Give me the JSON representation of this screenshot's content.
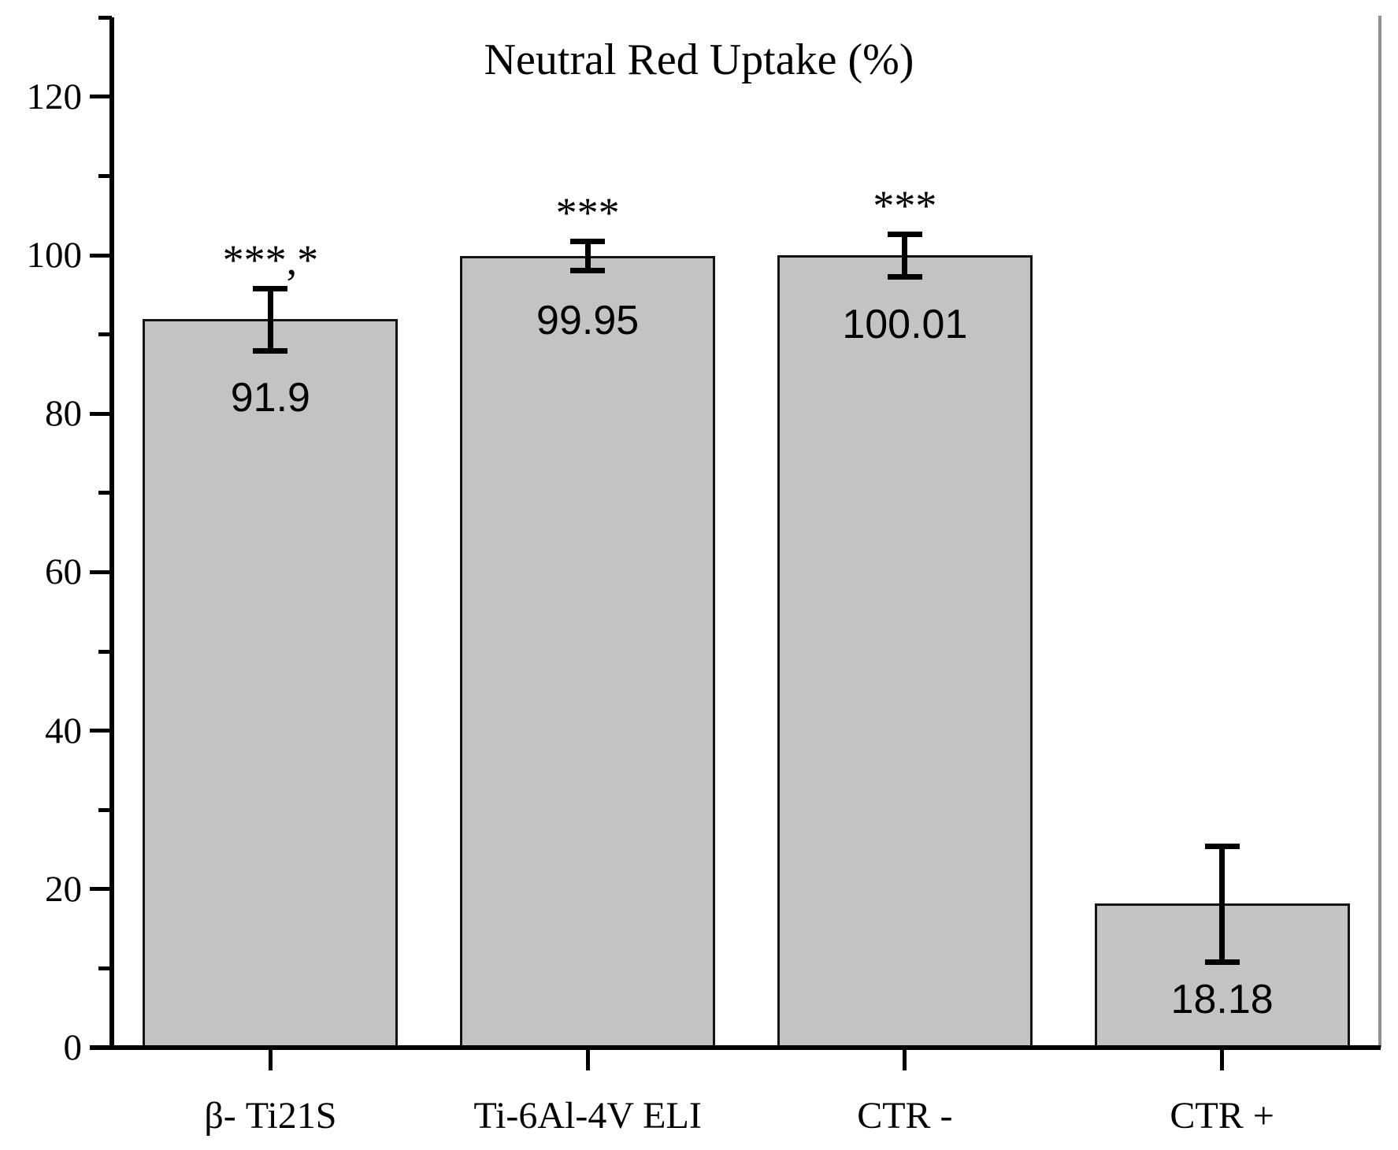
{
  "chart_data": {
    "type": "bar",
    "title": "Neutral Red Uptake (%)",
    "categories": [
      "β- Ti21S",
      "Ti-6Al-4V ELI",
      "CTR -",
      "CTR +"
    ],
    "values": [
      91.9,
      99.95,
      100.01,
      18.18
    ],
    "value_labels": [
      "91.9",
      "99.95",
      "100.01",
      "18.18"
    ],
    "errors": [
      3.9,
      1.8,
      2.7,
      7.3
    ],
    "annotations": [
      "***,*",
      "***",
      "***",
      ""
    ],
    "xlabel": "",
    "ylabel": "",
    "ylim": [
      0,
      130
    ],
    "yticks_major": [
      0,
      20,
      40,
      60,
      80,
      100,
      120
    ],
    "ytick_labels": [
      "0",
      "20",
      "40",
      "60",
      "80",
      "100",
      "120"
    ],
    "yticks_minor": [
      10,
      30,
      50,
      70,
      90,
      110,
      130
    ],
    "grid": false,
    "legend_position": "none",
    "bar_fill_color": "#c2c4c2",
    "bar_border_color": "#141414",
    "axis_color": "#000000",
    "right_frame_color": "#8f8f8f",
    "text_color": "#000000"
  },
  "layout_hints": {
    "value_label_dy": [
      100,
      82,
      88,
      122
    ]
  }
}
